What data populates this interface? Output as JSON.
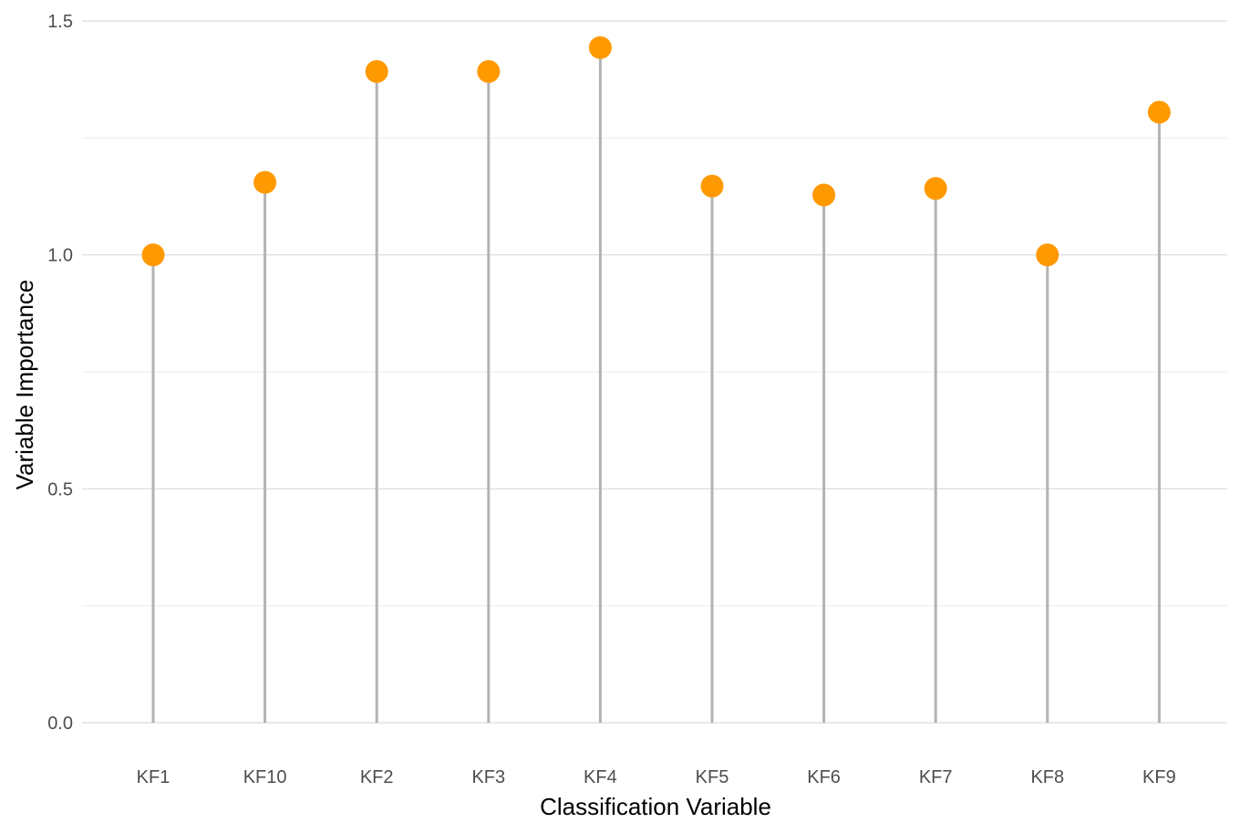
{
  "chart_data": {
    "type": "lollipop",
    "title": "",
    "xlabel": "Classification Variable",
    "ylabel": "Variable Importance",
    "categories": [
      "KF1",
      "KF10",
      "KF2",
      "KF3",
      "KF4",
      "KF5",
      "KF6",
      "KF7",
      "KF8",
      "KF9"
    ],
    "values": [
      1.0,
      1.155,
      1.392,
      1.392,
      1.443,
      1.147,
      1.128,
      1.142,
      1.0,
      1.305
    ],
    "ylim": [
      0,
      1.5
    ],
    "yticks": [
      0.0,
      0.5,
      1.0,
      1.5
    ],
    "ytick_labels": [
      "0.0",
      "0.5",
      "1.0",
      "1.5"
    ],
    "yminor": [
      0.25,
      0.75,
      1.25
    ],
    "grid": true,
    "legend": "none",
    "colors": {
      "point": "#ff9900",
      "stem": "#b3b3b3",
      "grid_major": "#d9d9d9",
      "grid_minor": "#ebebeb"
    }
  }
}
